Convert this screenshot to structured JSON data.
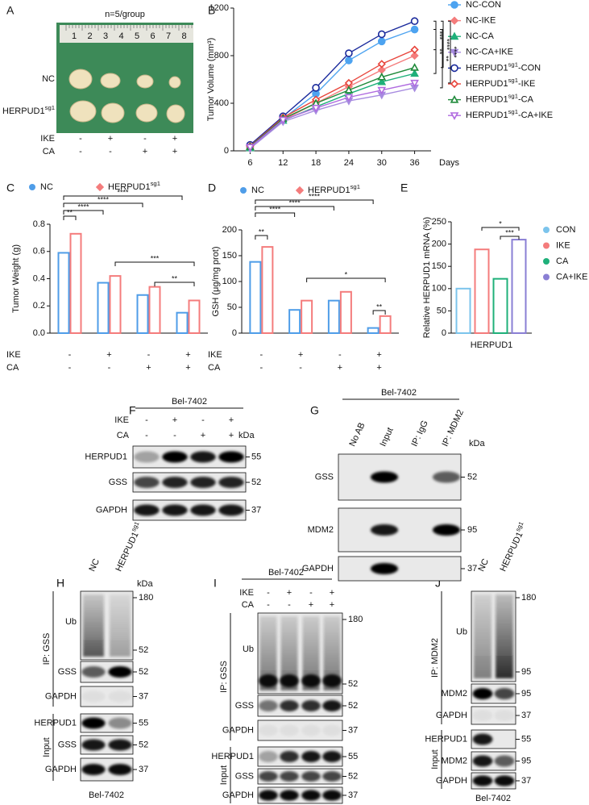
{
  "panels": [
    "A",
    "B",
    "C",
    "D",
    "E",
    "F",
    "G",
    "H",
    "I",
    "J"
  ],
  "photo": {
    "title": "n=5/group",
    "ruler": [
      1,
      2,
      3,
      4,
      5,
      6,
      7,
      8
    ],
    "rows": [
      "NC",
      "HERPUD1sg1"
    ],
    "treatments": [
      {
        "name": "IKE",
        "signs": [
          "-",
          "+",
          "-",
          "+"
        ]
      },
      {
        "name": "CA",
        "signs": [
          "-",
          "-",
          "+",
          "+"
        ]
      }
    ]
  },
  "chart_data": [
    {
      "type": "line",
      "x_label": "Days",
      "y_label": "Tumor Volume (mm³)",
      "x": [
        6,
        12,
        18,
        24,
        30,
        36
      ],
      "xlim": [
        3,
        39
      ],
      "xticks": [
        6,
        12,
        18,
        24,
        30,
        36
      ],
      "ylim": [
        0,
        1200
      ],
      "yticks": [
        0,
        400,
        800,
        1200
      ],
      "legend": "right",
      "series": [
        {
          "name": "NC-CON",
          "color": "#4da3f0",
          "marker": "circle",
          "filled": true,
          "values": [
            30,
            270,
            480,
            760,
            920,
            1020
          ]
        },
        {
          "name": "NC-IKE",
          "color": "#f47c7c",
          "marker": "diamond",
          "filled": true,
          "values": [
            25,
            260,
            400,
            540,
            680,
            800
          ]
        },
        {
          "name": "NC-CA",
          "color": "#1fb07a",
          "marker": "triangle",
          "filled": true,
          "values": [
            25,
            255,
            370,
            480,
            580,
            650
          ]
        },
        {
          "name": "NC-CA+IKE",
          "color": "#a78be0",
          "marker": "triangle-down",
          "filled": true,
          "values": [
            20,
            245,
            340,
            420,
            470,
            530
          ]
        },
        {
          "name": "HERPUD1sg1-CON",
          "color": "#1a2a9c",
          "marker": "circle",
          "filled": false,
          "values": [
            50,
            290,
            530,
            820,
            980,
            1090
          ]
        },
        {
          "name": "HERPUD1sg1-IKE",
          "color": "#e8453c",
          "marker": "diamond",
          "filled": false,
          "values": [
            40,
            280,
            430,
            570,
            730,
            850
          ]
        },
        {
          "name": "HERPUD1sg1-CA",
          "color": "#1f8a3a",
          "marker": "triangle",
          "filled": false,
          "values": [
            35,
            270,
            400,
            510,
            620,
            700
          ]
        },
        {
          "name": "HERPUD1sg1-CA+IKE",
          "color": "#b06be0",
          "marker": "triangle-down",
          "filled": false,
          "values": [
            30,
            260,
            360,
            450,
            510,
            570
          ]
        }
      ],
      "annotations": [
        "***",
        "****",
        "****",
        "**",
        "**"
      ]
    },
    {
      "type": "bar",
      "y_label": "Tumor Weight (g)",
      "ylim": [
        0,
        0.8
      ],
      "yticks": [
        {
          "value": 0,
          "label": "0.0"
        },
        0.2,
        0.4,
        0.6,
        0.8
      ],
      "legend": "top",
      "series": [
        {
          "name": "NC",
          "color": "#4f9de8",
          "values": [
            0.59,
            0.37,
            0.28,
            0.15
          ]
        },
        {
          "name": "HERPUD1sg1",
          "color": "#f47c7c",
          "values": [
            0.73,
            0.42,
            0.34,
            0.24
          ]
        }
      ],
      "treatments": [
        {
          "name": "IKE",
          "signs": [
            "-",
            "+",
            "-",
            "+"
          ]
        },
        {
          "name": "CA",
          "signs": [
            "-",
            "-",
            "+",
            "+"
          ]
        }
      ],
      "annotations": [
        "**",
        "****",
        "****",
        "****",
        "***",
        "**"
      ]
    },
    {
      "type": "bar",
      "y_label": "GSH (μg/mg prot)",
      "ylim": [
        0,
        200
      ],
      "yticks": [
        0,
        50,
        100,
        150,
        200
      ],
      "legend": "top",
      "series": [
        {
          "name": "NC",
          "color": "#4f9de8",
          "values": [
            138,
            45,
            63,
            10
          ]
        },
        {
          "name": "HERPUD1sg1",
          "color": "#f47c7c",
          "values": [
            167,
            63,
            80,
            33
          ]
        }
      ],
      "treatments": [
        {
          "name": "IKE",
          "signs": [
            "-",
            "+",
            "-",
            "+"
          ]
        },
        {
          "name": "CA",
          "signs": [
            "-",
            "-",
            "+",
            "+"
          ]
        }
      ],
      "annotations": [
        "**",
        "****",
        "****",
        "****",
        "*",
        "**"
      ]
    },
    {
      "type": "bar",
      "y_label": "Relative HERPUD1 mRNA (%)",
      "categories": [
        "HERPUD1"
      ],
      "ylim": [
        0,
        250
      ],
      "yticks": [
        0,
        50,
        100,
        150,
        200,
        250
      ],
      "legend": "right",
      "series": [
        {
          "name": "CON",
          "color": "#7cc4ec",
          "values": [
            100
          ]
        },
        {
          "name": "IKE",
          "color": "#f47c7c",
          "values": [
            188
          ]
        },
        {
          "name": "CA",
          "color": "#1fb07a",
          "values": [
            122
          ]
        },
        {
          "name": "CA+IKE",
          "color": "#8a7fd4",
          "values": [
            210
          ]
        }
      ],
      "annotations": [
        "*",
        "***"
      ]
    }
  ],
  "blots": {
    "f": {
      "cell_line": "Bel-7402",
      "mw_unit": "kDa",
      "conditions": [
        {
          "name": "IKE",
          "signs": [
            "-",
            "+",
            "-",
            "+"
          ]
        },
        {
          "name": "CA",
          "signs": [
            "-",
            "-",
            "+",
            "+"
          ]
        }
      ],
      "rows": [
        {
          "name": "HERPUD1",
          "mw": [
            55
          ]
        },
        {
          "name": "GSS",
          "mw": [
            52
          ]
        },
        {
          "name": "GAPDH",
          "mw": [
            37
          ]
        }
      ]
    },
    "g": {
      "cell_line": "Bel-7402",
      "mw_unit": "kDa",
      "lanes": [
        "No AB",
        "Input",
        "IP: IgG",
        "IP: MDM2"
      ],
      "rows": [
        {
          "name": "GSS",
          "mw": [
            52
          ]
        },
        {
          "name": "MDM2",
          "mw": [
            95
          ]
        },
        {
          "name": "GAPDH",
          "mw": [
            37
          ]
        }
      ]
    },
    "h": {
      "cell_line": "Bel-7402",
      "mw_unit": "kDa",
      "lanes": [
        "NC",
        "HERPUD1sg1"
      ],
      "groups": [
        {
          "name": "IP: GSS",
          "rows": [
            {
              "name": "Ub",
              "mw": [
                180,
                52
              ]
            },
            {
              "name": "GSS",
              "mw": [
                52
              ]
            },
            {
              "name": "GAPDH",
              "mw": [
                37
              ]
            }
          ]
        },
        {
          "name": "Input",
          "rows": [
            {
              "name": "HERPUD1",
              "mw": [
                55
              ]
            },
            {
              "name": "GSS",
              "mw": [
                52
              ]
            },
            {
              "name": "GAPDH",
              "mw": [
                37
              ]
            }
          ]
        }
      ]
    },
    "i": {
      "cell_line": "Bel-7402",
      "conditions": [
        {
          "name": "IKE",
          "signs": [
            "-",
            "+",
            "-",
            "+"
          ]
        },
        {
          "name": "CA",
          "signs": [
            "-",
            "-",
            "+",
            "+"
          ]
        }
      ],
      "groups": [
        {
          "name": "IP: GSS",
          "rows": [
            {
              "name": "Ub",
              "mw": [
                180,
                52
              ]
            },
            {
              "name": "GSS",
              "mw": [
                52
              ]
            },
            {
              "name": "GAPDH",
              "mw": [
                37
              ]
            }
          ]
        },
        {
          "name": "Input",
          "rows": [
            {
              "name": "HERPUD1",
              "mw": [
                55
              ]
            },
            {
              "name": "GSS",
              "mw": [
                52
              ]
            },
            {
              "name": "GAPDH",
              "mw": [
                37
              ]
            }
          ]
        }
      ]
    },
    "j": {
      "cell_line": "Bel-7402",
      "lanes": [
        "NC",
        "HERPUD1sg1"
      ],
      "groups": [
        {
          "name": "IP: MDM2",
          "rows": [
            {
              "name": "Ub",
              "mw": [
                180,
                95
              ]
            },
            {
              "name": "MDM2",
              "mw": [
                95
              ]
            },
            {
              "name": "GAPDH",
              "mw": [
                37
              ]
            }
          ]
        },
        {
          "name": "Input",
          "rows": [
            {
              "name": "HERPUD1",
              "mw": [
                55
              ]
            },
            {
              "name": "MDM2",
              "mw": [
                95
              ]
            },
            {
              "name": "GAPDH",
              "mw": [
                37
              ]
            }
          ]
        }
      ]
    }
  }
}
